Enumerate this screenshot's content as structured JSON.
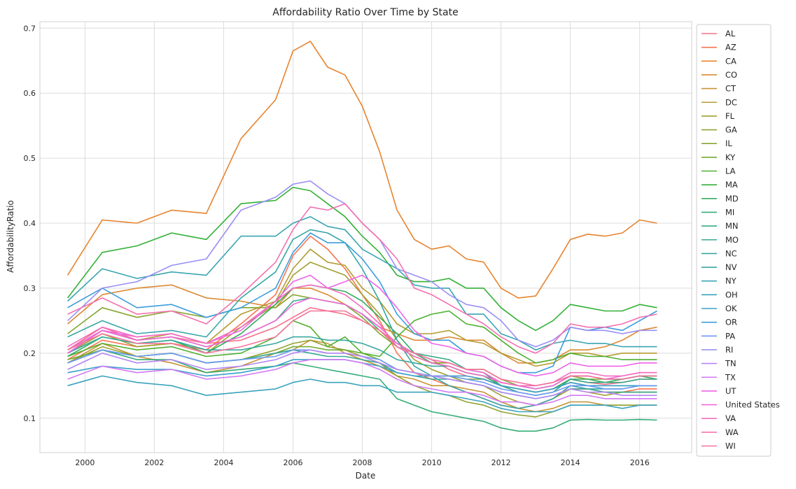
{
  "chart_data": {
    "type": "line",
    "title": "Affordability Ratio Over Time by State",
    "xlabel": "Date",
    "ylabel": "AffordabilityRatio",
    "xlim": [
      1998.7,
      2017.5
    ],
    "ylim": [
      0.047,
      0.71
    ],
    "x_ticks": [
      2000,
      2002,
      2004,
      2006,
      2008,
      2010,
      2012,
      2014,
      2016
    ],
    "y_ticks": [
      0.1,
      0.2,
      0.3,
      0.4,
      0.5,
      0.6,
      0.7
    ],
    "grid": true,
    "legend_position": "upper-right-outside",
    "x": [
      1999.5,
      2000.5,
      2001.5,
      2002.5,
      2003.5,
      2004.5,
      2005.5,
      2006.0,
      2006.5,
      2007.0,
      2007.5,
      2008.0,
      2008.5,
      2009.0,
      2009.5,
      2010.0,
      2010.5,
      2011.0,
      2011.5,
      2012.0,
      2012.5,
      2013.0,
      2013.5,
      2014.0,
      2014.5,
      2015.0,
      2015.5,
      2016.0,
      2016.5
    ],
    "series": [
      {
        "name": "AL",
        "color": "#f77189",
        "values": [
          0.205,
          0.24,
          0.22,
          0.225,
          0.215,
          0.22,
          0.24,
          0.255,
          0.27,
          0.265,
          0.26,
          0.25,
          0.235,
          0.215,
          0.2,
          0.19,
          0.175,
          0.165,
          0.16,
          0.15,
          0.145,
          0.14,
          0.145,
          0.16,
          0.155,
          0.152,
          0.155,
          0.16,
          0.16
        ]
      },
      {
        "name": "AZ",
        "color": "#f7754f",
        "values": [
          0.19,
          0.22,
          0.21,
          0.215,
          0.205,
          0.245,
          0.29,
          0.35,
          0.38,
          0.36,
          0.33,
          0.29,
          0.25,
          0.2,
          0.17,
          0.16,
          0.15,
          0.14,
          0.13,
          0.12,
          0.115,
          0.12,
          0.13,
          0.145,
          0.145,
          0.14,
          0.14,
          0.145,
          0.145
        ]
      },
      {
        "name": "CA",
        "color": "#e7842f",
        "values": [
          0.32,
          0.405,
          0.4,
          0.42,
          0.415,
          0.53,
          0.59,
          0.665,
          0.68,
          0.64,
          0.628,
          0.58,
          0.51,
          0.42,
          0.375,
          0.36,
          0.365,
          0.345,
          0.34,
          0.3,
          0.285,
          0.288,
          0.33,
          0.375,
          0.383,
          0.38,
          0.385,
          0.405,
          0.4
        ]
      },
      {
        "name": "CO",
        "color": "#dc8932",
        "values": [
          0.245,
          0.29,
          0.3,
          0.305,
          0.285,
          0.28,
          0.27,
          0.3,
          0.3,
          0.29,
          0.275,
          0.26,
          0.24,
          0.23,
          0.22,
          0.22,
          0.225,
          0.22,
          0.22,
          0.2,
          0.185,
          0.185,
          0.19,
          0.205,
          0.205,
          0.21,
          0.22,
          0.235,
          0.24
        ]
      },
      {
        "name": "CT",
        "color": "#c69432",
        "values": [
          0.185,
          0.215,
          0.195,
          0.185,
          0.17,
          0.18,
          0.2,
          0.205,
          0.22,
          0.215,
          0.2,
          0.19,
          0.18,
          0.165,
          0.16,
          0.15,
          0.15,
          0.145,
          0.14,
          0.125,
          0.115,
          0.11,
          0.115,
          0.125,
          0.125,
          0.12,
          0.12,
          0.12,
          0.12
        ]
      },
      {
        "name": "DC",
        "color": "#b39c31",
        "values": [
          0.2,
          0.235,
          0.22,
          0.23,
          0.215,
          0.26,
          0.28,
          0.33,
          0.36,
          0.34,
          0.335,
          0.3,
          0.28,
          0.245,
          0.23,
          0.23,
          0.235,
          0.22,
          0.215,
          0.2,
          0.19,
          0.18,
          0.185,
          0.2,
          0.2,
          0.195,
          0.2,
          0.2,
          0.2
        ]
      },
      {
        "name": "FL",
        "color": "#a1a031",
        "values": [
          0.2,
          0.23,
          0.21,
          0.215,
          0.2,
          0.24,
          0.275,
          0.32,
          0.34,
          0.33,
          0.32,
          0.29,
          0.26,
          0.22,
          0.19,
          0.175,
          0.165,
          0.155,
          0.15,
          0.135,
          0.125,
          0.12,
          0.13,
          0.145,
          0.14,
          0.135,
          0.14,
          0.14,
          0.14
        ]
      },
      {
        "name": "GA",
        "color": "#94a331",
        "values": [
          0.185,
          0.21,
          0.195,
          0.2,
          0.185,
          0.19,
          0.205,
          0.215,
          0.22,
          0.21,
          0.205,
          0.195,
          0.185,
          0.165,
          0.15,
          0.14,
          0.135,
          0.125,
          0.12,
          0.11,
          0.105,
          0.102,
          0.11,
          0.12,
          0.12,
          0.12,
          0.12,
          0.12,
          0.12
        ]
      },
      {
        "name": "IL",
        "color": "#86a631",
        "values": [
          0.23,
          0.27,
          0.255,
          0.265,
          0.255,
          0.27,
          0.27,
          0.29,
          0.285,
          0.28,
          0.275,
          0.255,
          0.23,
          0.21,
          0.195,
          0.185,
          0.185,
          0.175,
          0.175,
          0.16,
          0.15,
          0.145,
          0.15,
          0.165,
          0.16,
          0.16,
          0.16,
          0.165,
          0.165
        ]
      },
      {
        "name": "KY",
        "color": "#72aa31",
        "values": [
          0.19,
          0.205,
          0.195,
          0.2,
          0.185,
          0.19,
          0.2,
          0.21,
          0.21,
          0.205,
          0.205,
          0.2,
          0.19,
          0.175,
          0.17,
          0.165,
          0.165,
          0.16,
          0.16,
          0.15,
          0.145,
          0.14,
          0.145,
          0.155,
          0.15,
          0.15,
          0.15,
          0.15,
          0.15
        ]
      },
      {
        "name": "LA",
        "color": "#4fb031",
        "values": [
          0.195,
          0.215,
          0.205,
          0.21,
          0.195,
          0.2,
          0.225,
          0.25,
          0.24,
          0.21,
          0.225,
          0.2,
          0.195,
          0.225,
          0.25,
          0.26,
          0.265,
          0.245,
          0.24,
          0.22,
          0.2,
          0.185,
          0.19,
          0.2,
          0.195,
          0.195,
          0.19,
          0.19,
          0.19
        ]
      },
      {
        "name": "MA",
        "color": "#33b037",
        "values": [
          0.285,
          0.355,
          0.365,
          0.385,
          0.375,
          0.43,
          0.435,
          0.455,
          0.45,
          0.43,
          0.41,
          0.38,
          0.355,
          0.32,
          0.31,
          0.31,
          0.315,
          0.3,
          0.3,
          0.27,
          0.25,
          0.235,
          0.25,
          0.275,
          0.27,
          0.265,
          0.265,
          0.275,
          0.27
        ]
      },
      {
        "name": "MD",
        "color": "#34ae5e",
        "values": [
          0.195,
          0.225,
          0.215,
          0.22,
          0.2,
          0.23,
          0.275,
          0.3,
          0.305,
          0.3,
          0.295,
          0.28,
          0.255,
          0.23,
          0.2,
          0.185,
          0.18,
          0.17,
          0.165,
          0.15,
          0.145,
          0.14,
          0.145,
          0.16,
          0.16,
          0.155,
          0.16,
          0.165,
          0.16
        ]
      },
      {
        "name": "MI",
        "color": "#35ac76",
        "values": [
          0.185,
          0.205,
          0.19,
          0.19,
          0.17,
          0.175,
          0.18,
          0.185,
          0.18,
          0.175,
          0.17,
          0.165,
          0.16,
          0.13,
          0.12,
          0.11,
          0.105,
          0.1,
          0.095,
          0.085,
          0.08,
          0.08,
          0.085,
          0.097,
          0.098,
          0.097,
          0.097,
          0.098,
          0.097
        ]
      },
      {
        "name": "MN",
        "color": "#36ab86",
        "values": [
          0.205,
          0.235,
          0.22,
          0.225,
          0.21,
          0.225,
          0.25,
          0.28,
          0.285,
          0.28,
          0.275,
          0.26,
          0.235,
          0.21,
          0.2,
          0.195,
          0.19,
          0.175,
          0.17,
          0.15,
          0.14,
          0.135,
          0.14,
          0.16,
          0.155,
          0.155,
          0.155,
          0.16,
          0.16
        ]
      },
      {
        "name": "MO",
        "color": "#37a992",
        "values": [
          0.185,
          0.205,
          0.195,
          0.2,
          0.185,
          0.19,
          0.2,
          0.205,
          0.2,
          0.195,
          0.195,
          0.19,
          0.185,
          0.17,
          0.165,
          0.16,
          0.16,
          0.155,
          0.15,
          0.14,
          0.135,
          0.13,
          0.135,
          0.145,
          0.145,
          0.14,
          0.14,
          0.14,
          0.14
        ]
      },
      {
        "name": "NC",
        "color": "#38a89e",
        "values": [
          0.2,
          0.225,
          0.215,
          0.22,
          0.205,
          0.205,
          0.215,
          0.225,
          0.225,
          0.22,
          0.22,
          0.215,
          0.205,
          0.19,
          0.185,
          0.18,
          0.18,
          0.17,
          0.165,
          0.155,
          0.15,
          0.145,
          0.15,
          0.165,
          0.165,
          0.16,
          0.16,
          0.165,
          0.165
        ]
      },
      {
        "name": "NV",
        "color": "#38a6a8",
        "values": [
          0.225,
          0.25,
          0.23,
          0.235,
          0.225,
          0.285,
          0.325,
          0.375,
          0.39,
          0.385,
          0.37,
          0.33,
          0.28,
          0.22,
          0.18,
          0.165,
          0.15,
          0.14,
          0.13,
          0.12,
          0.115,
          0.12,
          0.13,
          0.15,
          0.145,
          0.145,
          0.145,
          0.15,
          0.15
        ]
      },
      {
        "name": "NY",
        "color": "#39a5b2",
        "values": [
          0.28,
          0.33,
          0.315,
          0.325,
          0.32,
          0.38,
          0.38,
          0.4,
          0.41,
          0.395,
          0.39,
          0.36,
          0.345,
          0.33,
          0.305,
          0.3,
          0.3,
          0.26,
          0.26,
          0.23,
          0.22,
          0.205,
          0.215,
          0.22,
          0.215,
          0.215,
          0.21,
          0.21,
          0.21
        ]
      },
      {
        "name": "OH",
        "color": "#3aa3bd",
        "values": [
          0.15,
          0.165,
          0.155,
          0.15,
          0.135,
          0.14,
          0.145,
          0.155,
          0.16,
          0.155,
          0.155,
          0.15,
          0.15,
          0.14,
          0.14,
          0.14,
          0.135,
          0.13,
          0.125,
          0.115,
          0.11,
          0.11,
          0.11,
          0.12,
          0.12,
          0.12,
          0.115,
          0.12,
          0.12
        ]
      },
      {
        "name": "OK",
        "color": "#3ba0c9",
        "values": [
          0.17,
          0.18,
          0.175,
          0.175,
          0.165,
          0.17,
          0.18,
          0.19,
          0.19,
          0.19,
          0.19,
          0.185,
          0.18,
          0.17,
          0.165,
          0.165,
          0.165,
          0.165,
          0.16,
          0.15,
          0.145,
          0.14,
          0.145,
          0.155,
          0.15,
          0.15,
          0.15,
          0.15,
          0.15
        ]
      },
      {
        "name": "OR",
        "color": "#3d9ddd",
        "values": [
          0.27,
          0.3,
          0.27,
          0.275,
          0.255,
          0.27,
          0.3,
          0.355,
          0.385,
          0.37,
          0.37,
          0.345,
          0.31,
          0.26,
          0.23,
          0.22,
          0.22,
          0.2,
          0.195,
          0.18,
          0.17,
          0.17,
          0.18,
          0.24,
          0.235,
          0.24,
          0.235,
          0.25,
          0.265
        ]
      },
      {
        "name": "PA",
        "color": "#6e9af4",
        "values": [
          0.185,
          0.205,
          0.195,
          0.2,
          0.185,
          0.19,
          0.195,
          0.205,
          0.205,
          0.2,
          0.2,
          0.195,
          0.19,
          0.175,
          0.17,
          0.165,
          0.165,
          0.16,
          0.155,
          0.145,
          0.14,
          0.135,
          0.14,
          0.15,
          0.15,
          0.145,
          0.145,
          0.15,
          0.15
        ]
      },
      {
        "name": "RI",
        "color": "#9a90f4",
        "values": [
          0.25,
          0.3,
          0.31,
          0.335,
          0.345,
          0.42,
          0.44,
          0.46,
          0.465,
          0.445,
          0.43,
          0.4,
          0.375,
          0.33,
          0.32,
          0.31,
          0.29,
          0.275,
          0.27,
          0.25,
          0.22,
          0.21,
          0.22,
          0.24,
          0.235,
          0.235,
          0.23,
          0.235,
          0.235
        ]
      },
      {
        "name": "TN",
        "color": "#b586f4",
        "values": [
          0.175,
          0.2,
          0.185,
          0.19,
          0.175,
          0.18,
          0.19,
          0.2,
          0.205,
          0.2,
          0.2,
          0.195,
          0.185,
          0.175,
          0.17,
          0.165,
          0.16,
          0.155,
          0.15,
          0.14,
          0.135,
          0.13,
          0.135,
          0.145,
          0.14,
          0.14,
          0.135,
          0.135,
          0.135
        ]
      },
      {
        "name": "TX",
        "color": "#d278f4",
        "values": [
          0.16,
          0.18,
          0.17,
          0.175,
          0.16,
          0.165,
          0.175,
          0.185,
          0.19,
          0.19,
          0.19,
          0.185,
          0.175,
          0.16,
          0.15,
          0.145,
          0.14,
          0.14,
          0.135,
          0.125,
          0.125,
          0.12,
          0.125,
          0.135,
          0.135,
          0.13,
          0.13,
          0.13,
          0.13
        ]
      },
      {
        "name": "UT",
        "color": "#ee63e9",
        "values": [
          0.2,
          0.235,
          0.225,
          0.23,
          0.215,
          0.235,
          0.28,
          0.31,
          0.32,
          0.3,
          0.31,
          0.32,
          0.3,
          0.27,
          0.235,
          0.215,
          0.21,
          0.2,
          0.195,
          0.18,
          0.17,
          0.165,
          0.17,
          0.185,
          0.18,
          0.18,
          0.18,
          0.185,
          0.185
        ]
      },
      {
        "name": "United States",
        "color": "#f467d6",
        "values": [
          0.205,
          0.235,
          0.22,
          0.225,
          0.21,
          0.225,
          0.25,
          0.275,
          0.285,
          0.28,
          0.275,
          0.26,
          0.24,
          0.215,
          0.2,
          0.19,
          0.185,
          0.175,
          0.17,
          0.155,
          0.15,
          0.145,
          0.15,
          0.165,
          0.165,
          0.16,
          0.165,
          0.17,
          0.17
        ]
      },
      {
        "name": "VA",
        "color": "#f56cc2",
        "values": [
          0.21,
          0.24,
          0.225,
          0.23,
          0.215,
          0.24,
          0.28,
          0.3,
          0.305,
          0.3,
          0.29,
          0.27,
          0.245,
          0.21,
          0.195,
          0.185,
          0.18,
          0.17,
          0.165,
          0.155,
          0.15,
          0.15,
          0.155,
          0.17,
          0.17,
          0.165,
          0.165,
          0.17,
          0.17
        ]
      },
      {
        "name": "WA",
        "color": "#f570b0",
        "values": [
          0.26,
          0.285,
          0.26,
          0.265,
          0.245,
          0.29,
          0.34,
          0.39,
          0.425,
          0.42,
          0.43,
          0.4,
          0.375,
          0.345,
          0.3,
          0.29,
          0.275,
          0.26,
          0.245,
          0.225,
          0.21,
          0.2,
          0.215,
          0.245,
          0.24,
          0.24,
          0.245,
          0.255,
          0.26
        ]
      },
      {
        "name": "WI",
        "color": "#f6749c",
        "values": [
          0.205,
          0.23,
          0.215,
          0.215,
          0.2,
          0.21,
          0.225,
          0.25,
          0.265,
          0.265,
          0.265,
          0.25,
          0.235,
          0.21,
          0.2,
          0.19,
          0.185,
          0.175,
          0.175,
          0.16,
          0.155,
          0.15,
          0.155,
          0.165,
          0.165,
          0.16,
          0.16,
          0.165,
          0.165
        ]
      }
    ]
  }
}
